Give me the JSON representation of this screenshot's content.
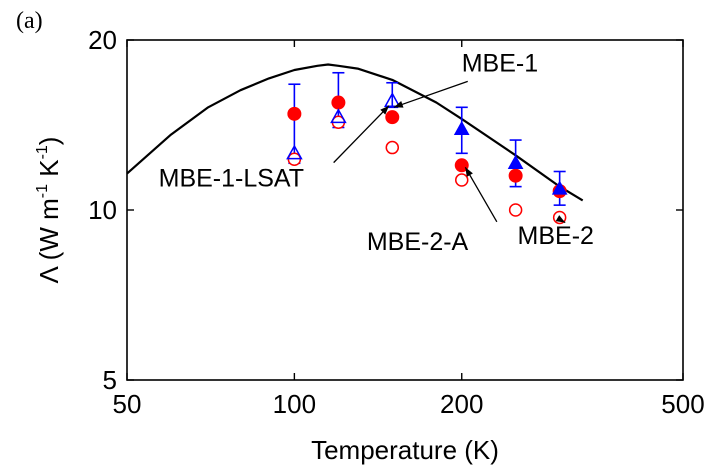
{
  "chart_data": {
    "type": "scatter",
    "panel_label": "(a)",
    "xlabel": "Temperature (K)",
    "ylabel_parts": [
      "Λ (W m",
      "-1",
      " K",
      "-1",
      ")"
    ],
    "xscale": "log",
    "yscale": "log",
    "xlim": [
      50,
      500
    ],
    "ylim": [
      5,
      20
    ],
    "xticks": [
      50,
      100,
      200,
      500
    ],
    "yticks": [
      5,
      10,
      20
    ],
    "grid": false,
    "legend": "none",
    "series": [
      {
        "name": "MBE-1",
        "marker": "filled-circle",
        "color": "#ff0000",
        "x": [
          100,
          120,
          150,
          200,
          250,
          300
        ],
        "y": [
          14.8,
          15.5,
          14.6,
          12.0,
          11.5,
          10.8
        ]
      },
      {
        "name": "MBE-2",
        "marker": "open-circle",
        "color": "#ff0000",
        "x": [
          100,
          120,
          150,
          200,
          250,
          300
        ],
        "y": [
          12.3,
          14.3,
          12.9,
          11.3,
          10.0,
          9.7
        ]
      },
      {
        "name": "MBE-1-LSAT",
        "marker": "open-triangle",
        "color": "#0000ff",
        "x": [
          100,
          120,
          150
        ],
        "y": [
          12.6,
          14.6,
          15.6
        ],
        "err_upper": [
          16.7,
          17.5,
          16.8
        ],
        "err_lower": [
          12.1,
          14.0,
          15.2
        ]
      },
      {
        "name": "MBE-2-A",
        "marker": "filled-triangle",
        "color": "#0000ff",
        "x": [
          200,
          250,
          300
        ],
        "y": [
          13.9,
          12.1,
          10.9
        ],
        "err_upper": [
          15.2,
          13.3,
          11.7
        ],
        "err_lower": [
          12.6,
          11.0,
          10.2
        ]
      },
      {
        "name": "model",
        "type": "line",
        "color": "#000000",
        "x": [
          50,
          60,
          70,
          80,
          90,
          100,
          110,
          115,
          120,
          130,
          150,
          180,
          200,
          250,
          300,
          330
        ],
        "y": [
          11.6,
          13.6,
          15.2,
          16.3,
          17.1,
          17.7,
          18.0,
          18.1,
          18.0,
          17.8,
          17.0,
          15.5,
          14.5,
          12.5,
          11.0,
          10.4
        ]
      }
    ],
    "annotations": [
      {
        "text": "MBE-1",
        "x": 200,
        "y": 17.6,
        "arrow_to": [
          151,
          15.2
        ]
      },
      {
        "text": "MBE-1-LSAT",
        "x": 57,
        "y": 11.0,
        "arrow_to": [
          148,
          15.3
        ]
      },
      {
        "text": "MBE-2-A",
        "x": 135,
        "y": 8.5,
        "arrow_to": [
          203,
          11.9
        ]
      },
      {
        "text": "MBE-2",
        "x": 252,
        "y": 8.7,
        "arrow_to": [
          307,
          9.5
        ]
      }
    ]
  }
}
